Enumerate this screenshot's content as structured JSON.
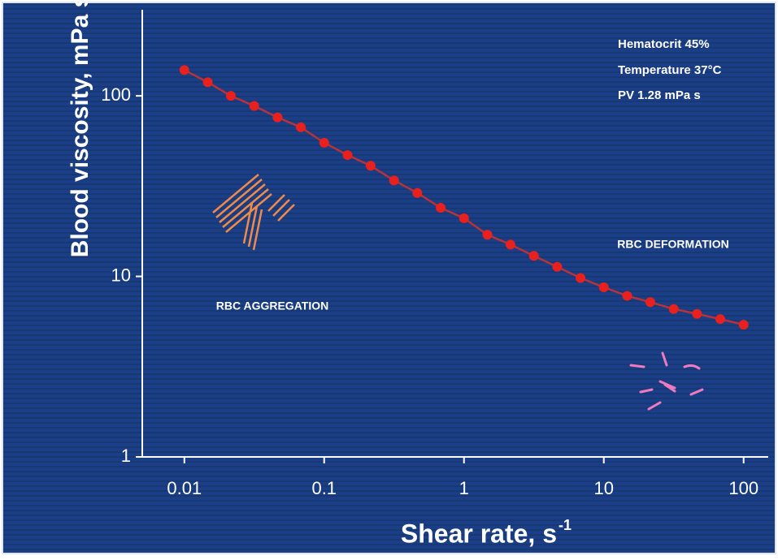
{
  "chart_data": {
    "type": "line",
    "xlabel": "Shear rate, s",
    "xlabel_superscript": "-1",
    "ylabel": "Blood viscosity, mPa s",
    "annotations": [
      "Hematocrit 45%",
      "Temperature 37°C",
      "PV 1.28 mPa s",
      "RBC DEFORMATION",
      "RBC AGGREGATION"
    ],
    "x": [
      0.01,
      0.0147,
      0.0215,
      0.0316,
      0.0464,
      0.0681,
      0.1,
      0.147,
      0.215,
      0.316,
      0.464,
      0.681,
      1,
      1.47,
      2.15,
      3.16,
      4.64,
      6.81,
      10,
      14.7,
      21.5,
      31.6,
      46.4,
      68.1,
      100
    ],
    "series": [
      {
        "color": "#e8201e",
        "values": [
          139,
          119,
          100,
          88,
          76,
          67,
          55,
          47,
          41,
          34,
          29,
          24,
          21,
          17,
          15,
          13,
          11.3,
          9.8,
          8.7,
          7.8,
          7.2,
          6.6,
          6.2,
          5.8,
          5.4
        ]
      }
    ],
    "xlim": [
      0.005,
      150
    ],
    "ylim": [
      1,
      300
    ],
    "xticks": [
      0.01,
      0.1,
      1,
      10,
      100
    ],
    "yticks": [
      1,
      10,
      100
    ],
    "xscale": "log",
    "yscale": "log"
  }
}
